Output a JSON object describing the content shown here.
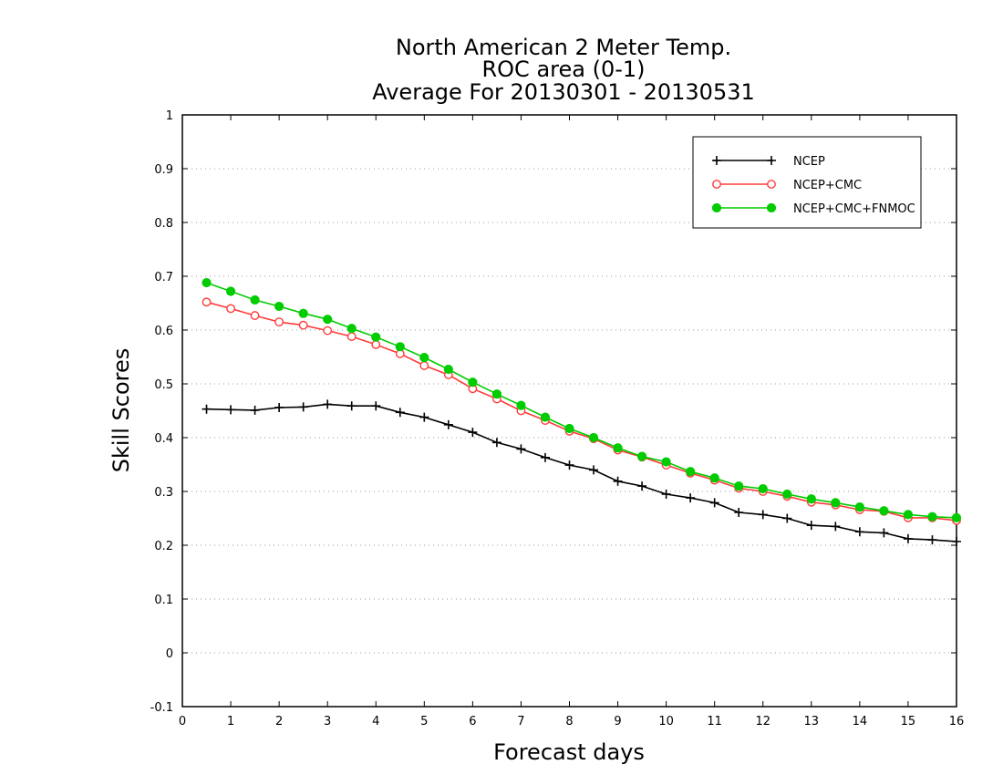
{
  "chart_data": {
    "type": "line",
    "title": [
      "North American 2 Meter Temp.",
      "ROC area (0-1)",
      "Average For 20130301 - 20130531"
    ],
    "xlabel": "Forecast days",
    "ylabel": "Skill Scores",
    "xlim": [
      0,
      16
    ],
    "ylim": [
      -0.1,
      1
    ],
    "xticks": [
      0,
      1,
      2,
      3,
      4,
      5,
      6,
      7,
      8,
      9,
      10,
      11,
      12,
      13,
      14,
      15,
      16
    ],
    "yticks": [
      -0.1,
      0,
      0.1,
      0.2,
      0.3,
      0.4,
      0.5,
      0.6,
      0.7,
      0.8,
      0.9,
      1
    ],
    "ytick_labels": [
      "-0.1",
      "0",
      "0.1",
      "0.2",
      "0.3",
      "0.4",
      "0.5",
      "0.6",
      "0.7",
      "0.8",
      "0.9",
      "1"
    ],
    "grid": "horizontal dotted",
    "legend_position": "top-right",
    "x": [
      0.5,
      1,
      1.5,
      2,
      2.5,
      3,
      3.5,
      4,
      4.5,
      5,
      5.5,
      6,
      6.5,
      7,
      7.5,
      8,
      8.5,
      9,
      9.5,
      10,
      10.5,
      11,
      11.5,
      12,
      12.5,
      13,
      13.5,
      14,
      14.5,
      15,
      15.5,
      16
    ],
    "series": [
      {
        "name": "NCEP",
        "color": "#000000",
        "marker": "plus",
        "values": [
          0.453,
          0.452,
          0.451,
          0.456,
          0.457,
          0.462,
          0.459,
          0.459,
          0.447,
          0.438,
          0.424,
          0.41,
          0.391,
          0.379,
          0.363,
          0.349,
          0.34,
          0.319,
          0.31,
          0.295,
          0.288,
          0.279,
          0.261,
          0.257,
          0.25,
          0.237,
          0.235,
          0.225,
          0.223,
          0.212,
          0.21,
          0.207
        ]
      },
      {
        "name": "NCEP+CMC",
        "color": "#ff3b3b",
        "marker": "open-circle",
        "values": [
          0.652,
          0.64,
          0.627,
          0.615,
          0.609,
          0.599,
          0.588,
          0.573,
          0.556,
          0.534,
          0.517,
          0.491,
          0.472,
          0.45,
          0.432,
          0.412,
          0.398,
          0.377,
          0.364,
          0.349,
          0.334,
          0.321,
          0.306,
          0.3,
          0.291,
          0.28,
          0.275,
          0.266,
          0.263,
          0.251,
          0.251,
          0.246
        ]
      },
      {
        "name": "NCEP+CMC+FNMOC",
        "color": "#00cc00",
        "marker": "filled-circle",
        "values": [
          0.688,
          0.672,
          0.656,
          0.644,
          0.631,
          0.62,
          0.603,
          0.587,
          0.569,
          0.549,
          0.527,
          0.503,
          0.481,
          0.46,
          0.438,
          0.417,
          0.4,
          0.381,
          0.365,
          0.355,
          0.337,
          0.325,
          0.31,
          0.305,
          0.295,
          0.286,
          0.279,
          0.271,
          0.264,
          0.257,
          0.253,
          0.251
        ]
      }
    ]
  }
}
